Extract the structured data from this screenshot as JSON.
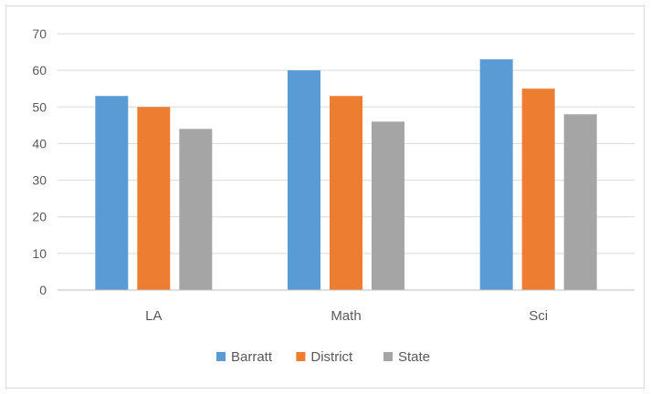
{
  "chart_data": {
    "type": "bar",
    "title": "",
    "xlabel": "",
    "ylabel": "",
    "categories": [
      "LA",
      "Math",
      "Sci"
    ],
    "series": [
      {
        "name": "Barratt",
        "values": [
          53,
          60,
          63
        ],
        "color": "#5b9bd5"
      },
      {
        "name": "District",
        "values": [
          50,
          53,
          55
        ],
        "color": "#ed7d31"
      },
      {
        "name": "State",
        "values": [
          44,
          46,
          48
        ],
        "color": "#a5a5a5"
      }
    ],
    "ylim": [
      0,
      70
    ],
    "yticks": [
      0,
      10,
      20,
      30,
      40,
      50,
      60,
      70
    ],
    "grid": true,
    "legend_position": "bottom",
    "gridline_color": "#d9d9d9",
    "axis_color": "#bfbfbf"
  }
}
